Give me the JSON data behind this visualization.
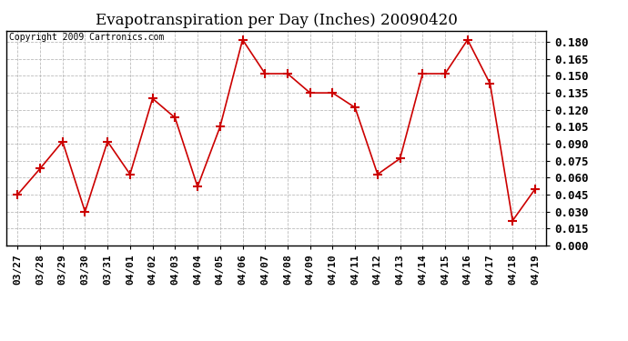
{
  "title": "Evapotranspiration per Day (Inches) 20090420",
  "copyright": "Copyright 2009 Cartronics.com",
  "labels": [
    "03/27",
    "03/28",
    "03/29",
    "03/30",
    "03/31",
    "04/01",
    "04/02",
    "04/03",
    "04/04",
    "04/05",
    "04/06",
    "04/07",
    "04/08",
    "04/09",
    "04/10",
    "04/11",
    "04/12",
    "04/13",
    "04/14",
    "04/15",
    "04/16",
    "04/17",
    "04/18",
    "04/19"
  ],
  "values": [
    0.045,
    0.068,
    0.092,
    0.03,
    0.092,
    0.063,
    0.13,
    0.113,
    0.052,
    0.105,
    0.182,
    0.152,
    0.152,
    0.135,
    0.135,
    0.122,
    0.063,
    0.077,
    0.152,
    0.152,
    0.182,
    0.143,
    0.022,
    0.05
  ],
  "line_color": "#cc0000",
  "marker": "+",
  "marker_color": "#cc0000",
  "bg_color": "#ffffff",
  "grid_color": "#bbbbbb",
  "ylim": [
    0.0,
    0.19
  ],
  "yticks": [
    0.0,
    0.015,
    0.03,
    0.045,
    0.06,
    0.075,
    0.09,
    0.105,
    0.12,
    0.135,
    0.15,
    0.165,
    0.18
  ],
  "title_fontsize": 12,
  "copyright_fontsize": 7,
  "tick_fontsize": 8,
  "ytick_fontsize": 9
}
